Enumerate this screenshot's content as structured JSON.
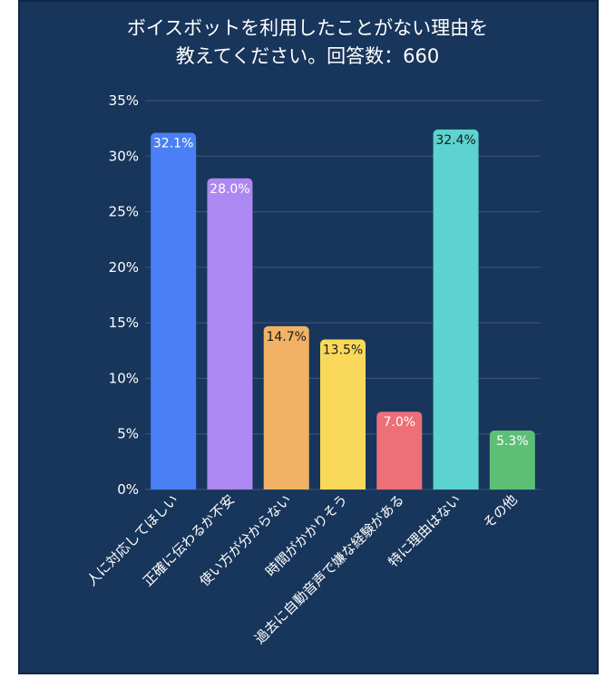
{
  "chart_data": {
    "type": "bar",
    "title_line1": "ボイスボットを利用したことがない理由を",
    "title_line2": "教えてください。回答数：660",
    "xlabel": "",
    "ylabel": "",
    "ylim": [
      0,
      35
    ],
    "yticks": [
      "0%",
      "5%",
      "10%",
      "15%",
      "20%",
      "25%",
      "30%",
      "35%"
    ],
    "grid": true,
    "categories": [
      "人に対応してほしい",
      "正確に伝わるか不安",
      "使い方が分からない",
      "時間がかかりそう",
      "過去に自動音声で嫌な経験がある",
      "特に理由はない",
      "その他"
    ],
    "values": [
      32.1,
      28.0,
      14.7,
      13.5,
      7.0,
      32.4,
      5.3
    ],
    "value_labels": [
      "32.1%",
      "28.0%",
      "14.7%",
      "13.5%",
      "7.0%",
      "32.4%",
      "5.3%"
    ],
    "colors": [
      "#4a7ff5",
      "#ad88f2",
      "#f1b265",
      "#fad95a",
      "#ed6f78",
      "#5cd3cf",
      "#5dbf76"
    ],
    "value_label_colors": [
      "#ffffff",
      "#ffffff",
      "#1a1a1a",
      "#1a1a1a",
      "#ffffff",
      "#1a1a1a",
      "#ffffff"
    ],
    "background": "#18355b",
    "grid_color": "#3e587a"
  }
}
